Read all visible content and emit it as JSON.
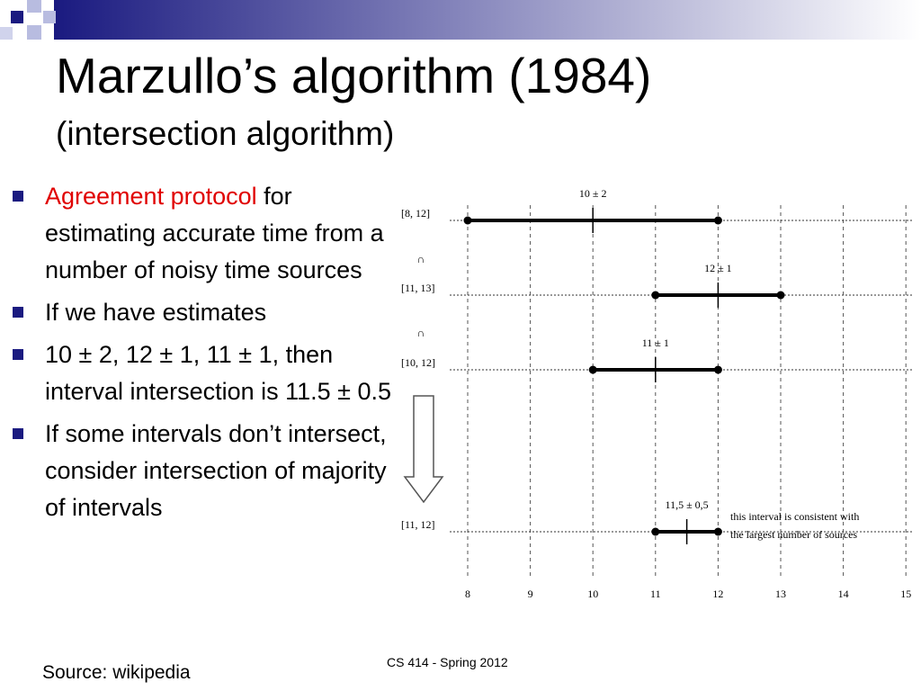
{
  "header": {
    "title": "Marzullo’s algorithm (1984)",
    "subtitle": "(intersection algorithm)"
  },
  "bullets": [
    {
      "highlight": "Agreement protocol",
      "text": "for estimating accurate time from a number of noisy time sources"
    },
    {
      "text": "If we have estimates"
    },
    {
      "text": "10 ± 2, 12 ± 1, 11 ± 1, then interval intersection is 11.5 ± 0.5"
    },
    {
      "text": "If some intervals don’t intersect, consider intersection of majority of intervals"
    }
  ],
  "figure": {
    "axis": [
      8,
      9,
      10,
      11,
      12,
      13,
      14,
      15
    ],
    "intervals": [
      {
        "range": "[8, 12]",
        "estimate": "10 ± 2"
      },
      {
        "range": "[11, 13]",
        "estimate": "12 ± 1"
      },
      {
        "range": "[10, 12]",
        "estimate": "11 ± 1"
      }
    ],
    "operator": "∩",
    "result": {
      "range": "[11, 12]",
      "estimate": "11,5 ± 0,5",
      "note": [
        "this interval is consistent with",
        "the largest number of sources"
      ]
    }
  },
  "footer": "CS 414 - Spring 2012",
  "source": "Source: wikipedia"
}
